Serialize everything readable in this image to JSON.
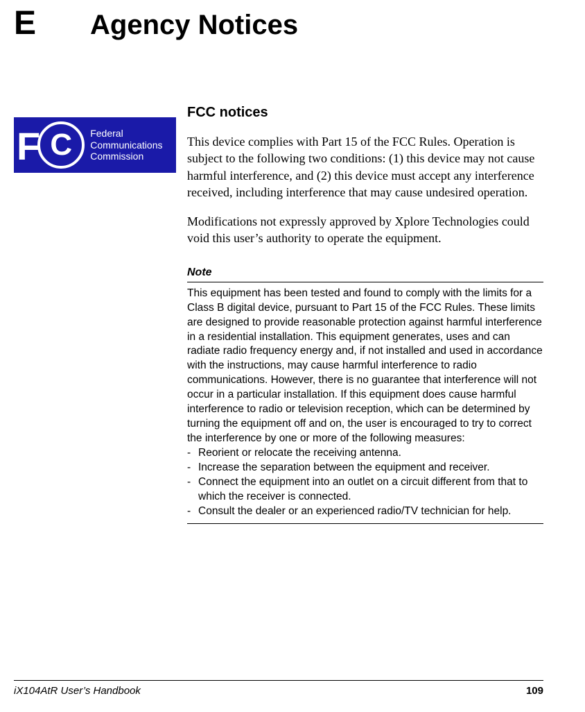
{
  "chapter": {
    "letter": "E",
    "title": "Agency Notices"
  },
  "fcc_logo": {
    "background_color": "#1a1aa8",
    "text_color": "#ffffff",
    "letters": "FC",
    "caption_line1": "Federal",
    "caption_line2": "Communications",
    "caption_line3": "Commission"
  },
  "section": {
    "heading": "FCC notices",
    "p1": "This device complies with Part 15 of the FCC Rules. Operation is subject to the following two conditions: (1) this device may not cause harmful interference, and (2) this device must accept any interference received, including interference that may cause undesired operation.",
    "p2": "Modifications not expressly approved by Xplore Technologies could void this user’s authority to operate the equipment."
  },
  "note": {
    "heading": "Note",
    "body": "This equipment has been tested and found to comply with the limits for a Class B digital device, pursuant to Part 15 of the FCC Rules. These limits are designed to provide reasonable protection against harmful interference in a residential installation. This equipment generates, uses and can radiate radio frequency energy and, if not installed and used in accordance with the instructions, may cause harmful interference to radio communications. However, there is no guarantee that interference will not occur in a particular installation. If this equipment does cause harmful interference to radio or television reception, which can be determined by turning the equipment off and on, the user is encouraged to try to correct the interference by one or more of the following measures:",
    "items": [
      "Reorient or relocate the receiving antenna.",
      "Increase the separation between the equipment and receiver.",
      "Connect the equipment into an outlet on a circuit different from that to which the receiver is connected.",
      "Consult the dealer or an experienced radio/TV technician for help."
    ]
  },
  "footer": {
    "book": "iX104AtR User’s Handbook",
    "page": "109"
  },
  "style": {
    "h1_fontsize": 40,
    "letter_fontsize": 48,
    "body_fontsize": 18,
    "note_fontsize": 15.5,
    "footer_fontsize": 15
  }
}
